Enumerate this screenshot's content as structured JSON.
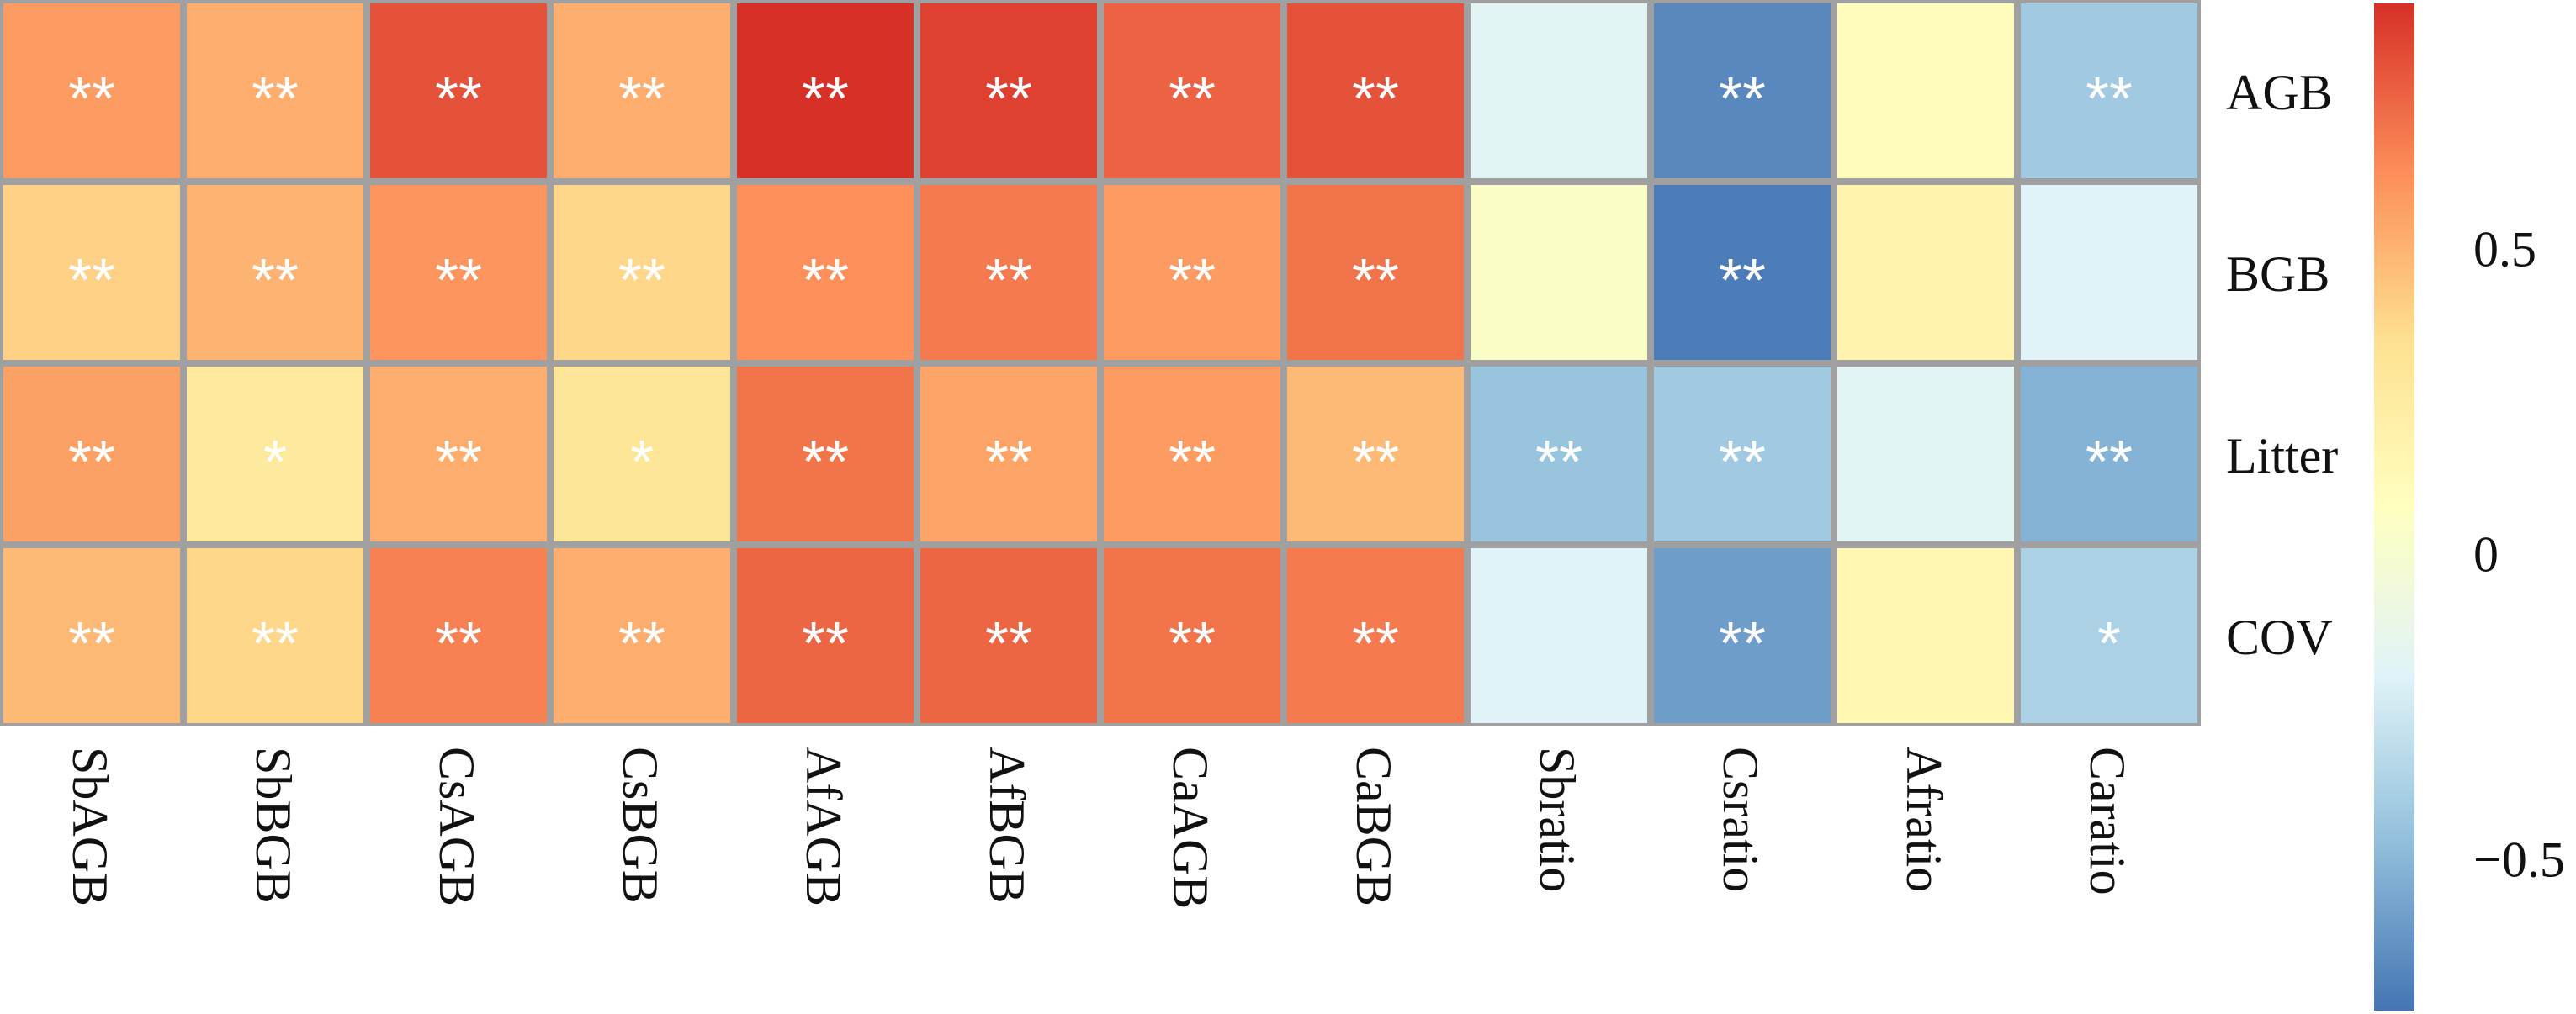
{
  "chart_data": {
    "type": "heatmap",
    "rows": [
      "AGB",
      "BGB",
      "Litter",
      "COV"
    ],
    "columns": [
      "SbAGB",
      "SbBGB",
      "CsAGB",
      "CsBGB",
      "AfAGB",
      "AfBGB",
      "CaAGB",
      "CaBGB",
      "Sbratio",
      "Csratio",
      "Afratio",
      "Caratio"
    ],
    "values": [
      [
        0.58,
        0.52,
        0.8,
        0.52,
        0.9,
        0.85,
        0.75,
        0.8,
        -0.18,
        -0.68,
        0.1,
        -0.42
      ],
      [
        0.4,
        0.5,
        0.6,
        0.38,
        0.62,
        0.68,
        0.58,
        0.7,
        0.04,
        -0.72,
        0.18,
        -0.2
      ],
      [
        0.56,
        0.26,
        0.52,
        0.3,
        0.7,
        0.55,
        0.58,
        0.48,
        -0.45,
        -0.42,
        -0.18,
        -0.52
      ],
      [
        0.48,
        0.38,
        0.66,
        0.52,
        0.74,
        0.74,
        0.7,
        0.68,
        -0.2,
        -0.6,
        0.15,
        -0.38
      ]
    ],
    "significance": [
      [
        "**",
        "**",
        "**",
        "**",
        "**",
        "**",
        "**",
        "**",
        "",
        "**",
        "",
        "**"
      ],
      [
        "**",
        "**",
        "**",
        "**",
        "**",
        "**",
        "**",
        "**",
        "",
        "**",
        "",
        ""
      ],
      [
        "**",
        "*",
        "**",
        "*",
        "**",
        "**",
        "**",
        "**",
        "**",
        "**",
        "",
        "**"
      ],
      [
        "**",
        "**",
        "**",
        "**",
        "**",
        "**",
        "**",
        "**",
        "",
        "**",
        "",
        "*"
      ]
    ],
    "colorbar": {
      "range": [
        -0.75,
        0.9
      ],
      "ticks": [
        {
          "value": 0.5,
          "label": "0.5"
        },
        {
          "value": 0,
          "label": "0"
        },
        {
          "value": -0.5,
          "label": "−0.5"
        }
      ],
      "colors": [
        "#4575b4",
        "#91bfdb",
        "#e0f3f8",
        "#ffffbf",
        "#fee090",
        "#fc8d59",
        "#d73027"
      ]
    },
    "grid_color": "#a0a0a0"
  }
}
